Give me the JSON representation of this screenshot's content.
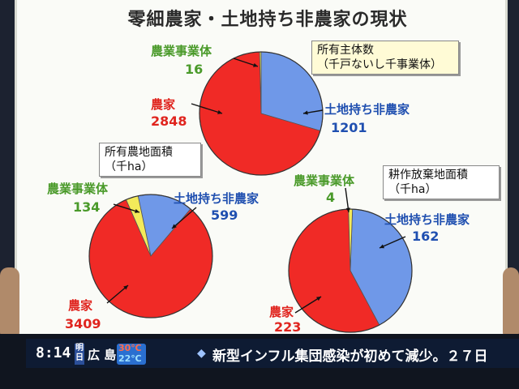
{
  "title": "零細農家・土地持ち非農家の現状",
  "colors": {
    "farm_household": "#f02a26",
    "landowning_nonfarm": "#6f98e8",
    "agri_business": "#f3ea5a"
  },
  "chart_data": [
    {
      "type": "pie",
      "title": "所有主体数",
      "unit": "（千戸ないし千事業体）",
      "slices": [
        {
          "label": "土地持ち非農家",
          "value": 1201
        },
        {
          "label": "農家",
          "value": 2848
        },
        {
          "label": "農業事業体",
          "value": 16
        }
      ]
    },
    {
      "type": "pie",
      "title": "所有農地面積",
      "unit": "（千ha）",
      "slices": [
        {
          "label": "土地持ち非農家",
          "value": 599
        },
        {
          "label": "農家",
          "value": 3409
        },
        {
          "label": "農業事業体",
          "value": 134
        }
      ]
    },
    {
      "type": "pie",
      "title": "耕作放棄地面積",
      "unit": "（千ha）",
      "slices": [
        {
          "label": "土地持ち非農家",
          "value": 162
        },
        {
          "label": "農家",
          "value": 223
        },
        {
          "label": "農業事業体",
          "value": 4
        }
      ]
    }
  ],
  "ticker": {
    "time": "8:14",
    "day": "明日",
    "city": "広 島",
    "temp_high": "30℃",
    "temp_low": "22℃",
    "headline": "新型インフル集団感染が初めて減少。２７日"
  }
}
